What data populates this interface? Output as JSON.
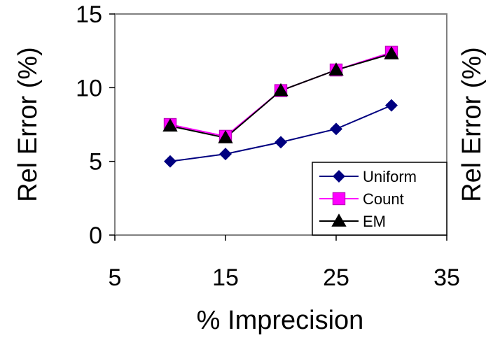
{
  "chart_data": {
    "type": "line",
    "x": [
      10,
      15,
      20,
      25,
      30
    ],
    "xlabel": "% Imprecision",
    "ylabel": "Rel Error (%)",
    "ylabel_right": "Rel Error (%)",
    "xlim": [
      5,
      35
    ],
    "ylim": [
      0,
      15
    ],
    "xticks": [
      "5",
      "15",
      "25",
      "35"
    ],
    "yticks": [
      "0",
      "5",
      "10",
      "15"
    ],
    "grid": false,
    "legend_position": "bottom-right",
    "series": [
      {
        "name": "Uniform",
        "values": [
          5.0,
          5.5,
          6.3,
          7.2,
          8.8
        ],
        "color": "#000080",
        "marker": "diamond"
      },
      {
        "name": "Count",
        "values": [
          7.5,
          6.7,
          9.8,
          11.2,
          12.4
        ],
        "color": "#ff00ff",
        "marker": "square"
      },
      {
        "name": "EM",
        "values": [
          7.4,
          6.6,
          9.8,
          11.2,
          12.3
        ],
        "color": "#000000",
        "marker": "triangle"
      }
    ]
  }
}
